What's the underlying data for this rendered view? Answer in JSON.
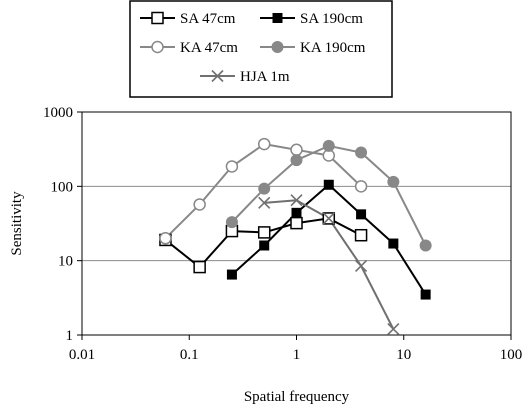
{
  "chart_data": {
    "type": "line",
    "title": "",
    "xlabel": "Spatial frequency",
    "ylabel": "Sensitivity",
    "xscale": "log",
    "yscale": "log",
    "xlim": [
      0.01,
      100
    ],
    "ylim": [
      1,
      1000
    ],
    "xticks": [
      "0.01",
      "0.1",
      "1",
      "10",
      "100"
    ],
    "yticks": [
      "1",
      "10",
      "100",
      "1000"
    ],
    "grid": "horizontal major gridlines",
    "legend_position": "top-center, boxed, outside plot",
    "series": [
      {
        "name": "SA 47cm",
        "marker": "open-square",
        "color": "#000000",
        "x": [
          0.06,
          0.125,
          0.25,
          0.5,
          1,
          2,
          4
        ],
        "y": [
          19,
          8.2,
          25,
          24,
          32,
          37,
          22
        ]
      },
      {
        "name": "SA 190cm",
        "marker": "filled-square",
        "color": "#000000",
        "x": [
          0.25,
          0.5,
          1,
          2,
          4,
          8,
          16
        ],
        "y": [
          6.5,
          16,
          44,
          105,
          42,
          17,
          3.5
        ]
      },
      {
        "name": "KA 47cm",
        "marker": "open-circle",
        "color": "#888888",
        "x": [
          0.06,
          0.125,
          0.25,
          0.5,
          1,
          2,
          4
        ],
        "y": [
          20,
          57,
          185,
          370,
          310,
          260,
          100
        ]
      },
      {
        "name": "KA 190cm",
        "marker": "filled-circle",
        "color": "#888888",
        "x": [
          0.25,
          0.5,
          1,
          2,
          4,
          8,
          16
        ],
        "y": [
          33,
          93,
          225,
          350,
          285,
          115,
          16
        ]
      },
      {
        "name": "HJA 1m",
        "marker": "cross",
        "color": "#707070",
        "x": [
          0.5,
          1,
          2,
          4,
          8
        ],
        "y": [
          60,
          65,
          37,
          8.5,
          1.2
        ]
      }
    ]
  }
}
